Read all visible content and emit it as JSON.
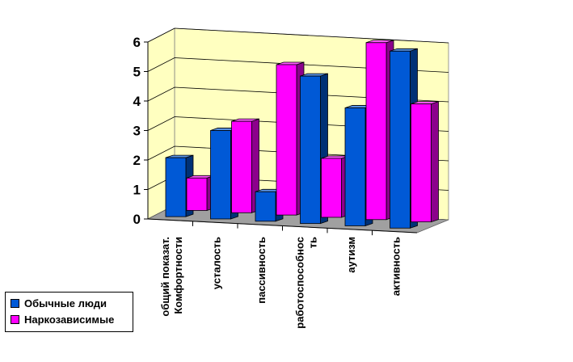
{
  "chart_data": {
    "type": "bar",
    "title": "",
    "xlabel": "",
    "ylabel": "",
    "ylim": [
      0,
      6
    ],
    "yticks": [
      "0",
      "1",
      "2",
      "3",
      "4",
      "5",
      "6"
    ],
    "grid": true,
    "legend_position": "bottom-left",
    "categories": [
      [
        "общий показат.",
        "Комфортности"
      ],
      [
        "усталость"
      ],
      [
        "пассивность"
      ],
      [
        "работоспособнос",
        "ть"
      ],
      [
        "аутизм"
      ],
      [
        "активность"
      ]
    ],
    "series": [
      {
        "name": "Обычные люди",
        "color": "#0059D6",
        "values": [
          2.0,
          3.0,
          1.0,
          5.0,
          4.0,
          6.0
        ]
      },
      {
        "name": "Наркозависимые",
        "color": "#FF00FF",
        "values": [
          1.1,
          3.1,
          5.1,
          2.0,
          6.0,
          4.0
        ]
      }
    ],
    "colors": {
      "wall": "#FFFFC0",
      "floor": "#A0A0A0",
      "gridline": "#000000"
    }
  }
}
